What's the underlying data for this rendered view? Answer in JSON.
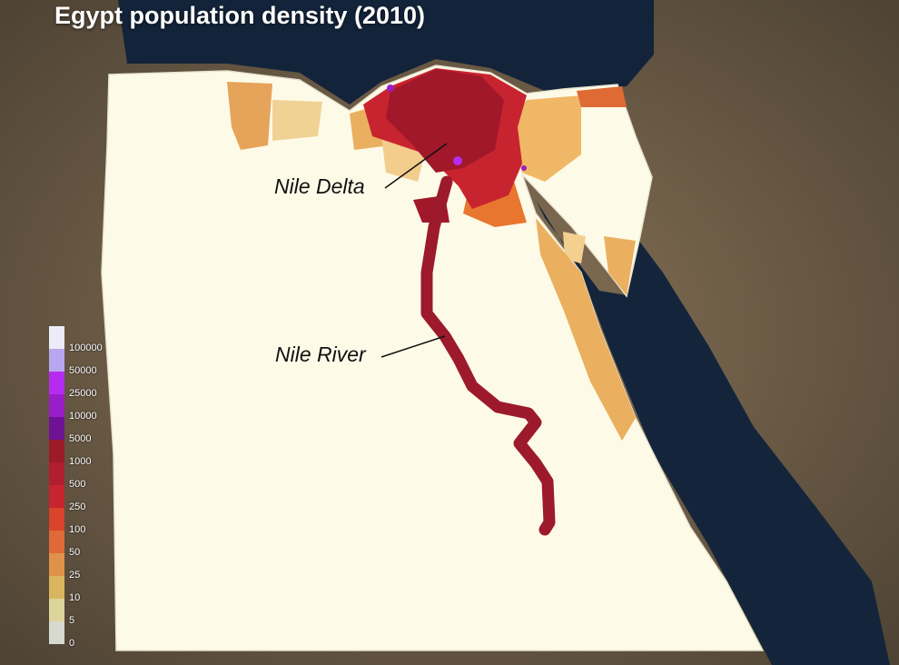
{
  "title": "Egypt population density (2010)",
  "annotations": [
    {
      "label": "Nile Delta"
    },
    {
      "label": "Nile River"
    }
  ],
  "legend": {
    "labels": [
      "100000",
      "50000",
      "25000",
      "10000",
      "5000",
      "1000",
      "500",
      "250",
      "100",
      "50",
      "25",
      "10",
      "5",
      "0"
    ],
    "colors": [
      "#ecebf7",
      "#b9a6f0",
      "#b52cf0",
      "#9a1ec8",
      "#6e1296",
      "#9c1a2a",
      "#b01e30",
      "#c8242f",
      "#d9442a",
      "#df6a38",
      "#e0914a",
      "#d9b560",
      "#dcd49a",
      "#d7d9d0"
    ]
  },
  "colors": {
    "land": "#fdfbe8",
    "sea": "#13233a",
    "delta": "#a0182a",
    "nile": "#9c1a2c"
  }
}
